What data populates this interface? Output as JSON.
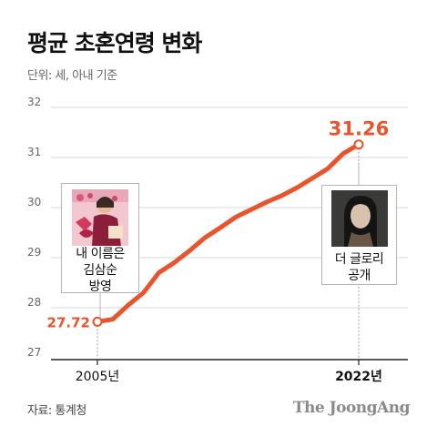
{
  "title": "평균 초혼연령 변화",
  "unit_note": "단위: 세, 아내 기준",
  "source": "자료: 통계청",
  "brand": "The JoongAng",
  "colors": {
    "line": "#e8542b",
    "grid": "#d9d9d9",
    "axis": "#222222",
    "guide": "#9a9a9a"
  },
  "callouts": {
    "c2005": {
      "lines": [
        "내 이름은",
        "김삼순",
        "방영"
      ],
      "image": "drama-still-photo"
    },
    "c2022": {
      "lines": [
        "더 글로리",
        "공개"
      ],
      "image": "drama-still-photo"
    }
  },
  "chart_data": {
    "type": "line",
    "title": "평균 초혼연령 변화",
    "xlabel": "",
    "ylabel": "",
    "ylim": [
      27,
      32
    ],
    "yticks": [
      "27",
      "28",
      "29",
      "30",
      "31",
      "32"
    ],
    "xlim": [
      2005,
      2022
    ],
    "xtick_labels": [
      {
        "x": 2005,
        "label": "2005년"
      },
      {
        "x": 2022,
        "label": "2022년"
      }
    ],
    "grid": true,
    "series": [
      {
        "name": "",
        "x": [
          2005,
          2006,
          2007,
          2008,
          2009,
          2010,
          2011,
          2012,
          2013,
          2014,
          2015,
          2016,
          2017,
          2018,
          2019,
          2020,
          2021,
          2022
        ],
        "values": [
          27.72,
          27.77,
          28.05,
          28.3,
          28.7,
          28.9,
          29.14,
          29.4,
          29.6,
          29.81,
          29.96,
          30.11,
          30.24,
          30.4,
          30.59,
          30.78,
          31.08,
          31.26
        ]
      }
    ],
    "point_labels": [
      {
        "x": 2005,
        "y": 27.72,
        "text": "27.72"
      },
      {
        "x": 2022,
        "y": 31.26,
        "text": "31.26"
      }
    ]
  }
}
